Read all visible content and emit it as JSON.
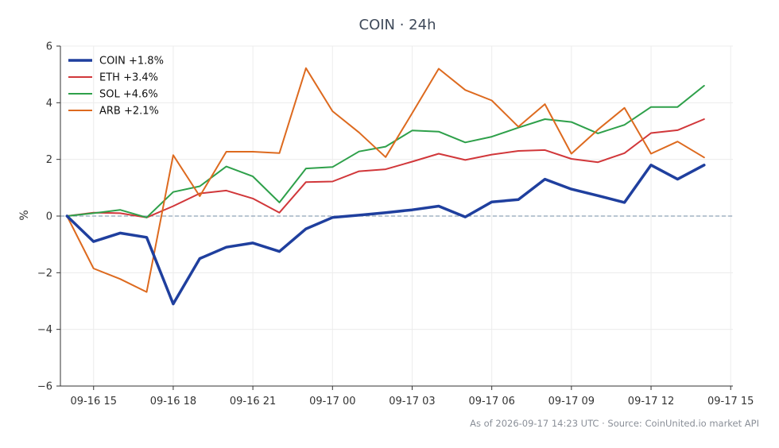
{
  "chart_data": {
    "type": "line",
    "title": "COIN · 24h",
    "xlabel": "",
    "ylabel": "%",
    "ylim": [
      -6,
      6
    ],
    "yticks": [
      -6,
      -4,
      -2,
      0,
      2,
      4,
      6
    ],
    "ytick_labels": [
      "−6",
      "−4",
      "−2",
      "0",
      "2",
      "4",
      "6"
    ],
    "xlim": [
      "2026-09-16 13:45",
      "2026-09-17 15:05"
    ],
    "xticks": [
      "2026-09-16 15:00",
      "2026-09-16 18:00",
      "2026-09-16 21:00",
      "2026-09-17 00:00",
      "2026-09-17 03:00",
      "2026-09-17 06:00",
      "2026-09-17 09:00",
      "2026-09-17 12:00",
      "2026-09-17 15:00"
    ],
    "xtick_labels": [
      "09-16 15",
      "09-16 18",
      "09-16 21",
      "09-17 00",
      "09-17 03",
      "09-17 06",
      "09-17 09",
      "09-17 12",
      "09-17 15"
    ],
    "x": [
      "2026-09-16 14:00",
      "2026-09-16 15:00",
      "2026-09-16 16:00",
      "2026-09-16 17:00",
      "2026-09-16 18:00",
      "2026-09-16 19:00",
      "2026-09-16 20:00",
      "2026-09-16 21:00",
      "2026-09-16 22:00",
      "2026-09-16 23:00",
      "2026-09-17 00:00",
      "2026-09-17 01:00",
      "2026-09-17 02:00",
      "2026-09-17 03:00",
      "2026-09-17 04:00",
      "2026-09-17 05:00",
      "2026-09-17 06:00",
      "2026-09-17 07:00",
      "2026-09-17 08:00",
      "2026-09-17 09:00",
      "2026-09-17 10:00",
      "2026-09-17 11:00",
      "2026-09-17 12:00",
      "2026-09-17 13:00",
      "2026-09-17 14:00"
    ],
    "series": [
      {
        "name": "COIN +1.8%",
        "color": "#1f3f9e",
        "width": 3.5,
        "values": [
          0.0,
          -0.9,
          -0.6,
          -0.75,
          -3.1,
          -1.5,
          -1.1,
          -0.95,
          -1.25,
          -0.45,
          -0.05,
          0.03,
          0.12,
          0.22,
          0.35,
          -0.03,
          0.5,
          0.58,
          1.3,
          0.95,
          0.72,
          0.48,
          1.8,
          1.3,
          1.8
        ]
      },
      {
        "name": "ETH +3.4%",
        "color": "#d1373a",
        "width": 2,
        "values": [
          0.0,
          0.12,
          0.1,
          -0.05,
          0.35,
          0.8,
          0.9,
          0.62,
          0.12,
          1.2,
          1.22,
          1.58,
          1.65,
          1.92,
          2.2,
          1.98,
          2.17,
          2.3,
          2.33,
          2.02,
          1.9,
          2.22,
          2.93,
          3.03,
          3.42
        ]
      },
      {
        "name": "SOL +4.6%",
        "color": "#2ea04a",
        "width": 2,
        "values": [
          0.0,
          0.1,
          0.22,
          -0.05,
          0.85,
          1.05,
          1.75,
          1.4,
          0.48,
          1.68,
          1.73,
          2.28,
          2.45,
          3.02,
          2.98,
          2.6,
          2.8,
          3.12,
          3.42,
          3.32,
          2.92,
          3.22,
          3.85,
          3.85,
          4.6
        ]
      },
      {
        "name": "ARB +2.1%",
        "color": "#dd6a1f",
        "width": 2,
        "values": [
          0.0,
          -1.85,
          -2.22,
          -2.68,
          2.15,
          0.7,
          2.27,
          2.27,
          2.22,
          5.22,
          3.7,
          2.95,
          2.08,
          3.63,
          5.2,
          4.45,
          4.08,
          3.15,
          3.95,
          2.2,
          3.05,
          3.82,
          2.2,
          2.63,
          2.07
        ]
      }
    ],
    "zero_line_color": "#8fa3b8",
    "grid": true,
    "legend_position": "top-left"
  },
  "footer": "As of 2026-09-17 14:23 UTC · Source: CoinUnited.io market API"
}
